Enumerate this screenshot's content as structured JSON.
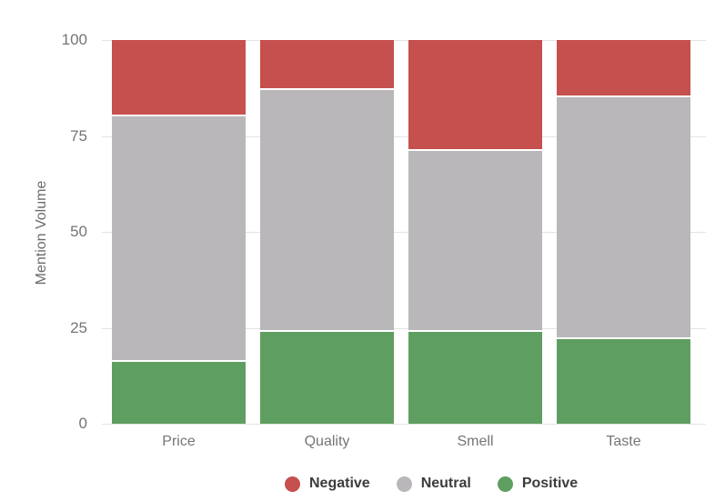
{
  "chart_data": {
    "type": "bar",
    "stacked": true,
    "title": "",
    "xlabel": "",
    "ylabel": "Mention Volume",
    "ylim": [
      0,
      100
    ],
    "yticks": [
      0,
      25,
      50,
      75,
      100
    ],
    "grid": true,
    "legend_position": "bottom",
    "categories": [
      "Price",
      "Quality",
      "Smell",
      "Taste"
    ],
    "series": [
      {
        "name": "Negative",
        "color": "#c5504e",
        "values": [
          20,
          13,
          29,
          15
        ]
      },
      {
        "name": "Neutral",
        "color": "#b9b7b9",
        "values": [
          64,
          63,
          47,
          63
        ]
      },
      {
        "name": "Positive",
        "color": "#5f9e61",
        "values": [
          16,
          24,
          24,
          22
        ]
      }
    ],
    "cumulative_tops": {
      "Price": {
        "Positive": 16,
        "Neutral": 80,
        "Negative": 100
      },
      "Quality": {
        "Positive": 24,
        "Neutral": 87,
        "Negative": 100
      },
      "Smell": {
        "Positive": 24,
        "Neutral": 71,
        "Negative": 100
      },
      "Taste": {
        "Positive": 22,
        "Neutral": 85,
        "Negative": 100
      }
    }
  },
  "colors": {
    "background": "#ffffff",
    "gridline": "#e3e3e3",
    "axis_text": "#757575",
    "axis_title_text": "#6b6b6b",
    "legend_text": "#3c3c3c",
    "segment_separator": "#ffffff"
  }
}
